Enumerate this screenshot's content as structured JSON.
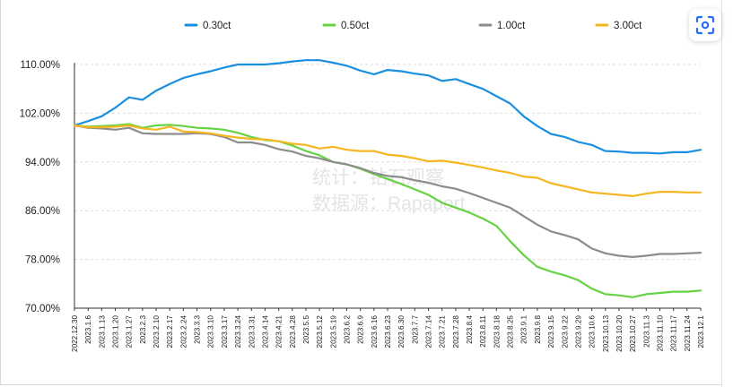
{
  "chart_data": {
    "type": "line",
    "title": "",
    "xlabel": "",
    "ylabel": "",
    "ylim": [
      70,
      110
    ],
    "y_ticks": [
      "70.00%",
      "78.00%",
      "86.00%",
      "94.00%",
      "102.00%",
      "110.00%"
    ],
    "grid": "horizontal dashed",
    "legend_position": "top",
    "watermark": [
      "统计：钻石观察",
      "数据源：Rapaport"
    ],
    "categories": [
      "2022.12.30",
      "2023.1.6",
      "2023.1.13",
      "2023.1.20",
      "2023.1.27",
      "2023.2.3",
      "2023.2.10",
      "2023.2.17",
      "2023.2.24",
      "2023.3.3",
      "2023.3.10",
      "2023.3.17",
      "2023.3.24",
      "2023.3.31",
      "2023.4.14",
      "2023.4.21",
      "2023.4.28",
      "2023.5.5",
      "2023.5.12",
      "2023.5.19",
      "2023.6.2",
      "2023.6.9",
      "2023.6.16",
      "2023.6.23",
      "2023.6.30",
      "2023.7.7",
      "2023.7.14",
      "2023.7.21",
      "2023.7.28",
      "2023.8.4",
      "2023.8.11",
      "2023.8.18",
      "2023.8.25",
      "2023.9.1",
      "2023.9.8",
      "2023.9.15",
      "2023.9.22",
      "2023.9.29",
      "2023.10.6",
      "2023.10.13",
      "2023.10.20",
      "2023.10.27",
      "2023.11.3",
      "2023.11.10",
      "2023.11.17",
      "2023.11.24",
      "2023.12.1"
    ],
    "series": [
      {
        "name": "0.30ct",
        "color": "#1a8fe0",
        "values": [
          100,
          100.7,
          101.5,
          102.9,
          104.6,
          104.2,
          105.7,
          106.8,
          107.8,
          108.4,
          108.9,
          109.5,
          110.0,
          110.0,
          110.0,
          110.2,
          110.5,
          110.7,
          110.7,
          110.3,
          109.8,
          109.0,
          108.4,
          109.1,
          108.9,
          108.5,
          108.2,
          107.3,
          107.6,
          106.8,
          106.0,
          104.8,
          103.6,
          101.5,
          99.9,
          98.6,
          98.1,
          97.3,
          96.8,
          95.8,
          95.7,
          95.5,
          95.5,
          95.4,
          95.6,
          95.6,
          96.0
        ]
      },
      {
        "name": "0.50ct",
        "color": "#66d244",
        "values": [
          100,
          99.8,
          99.9,
          100.0,
          100.2,
          99.6,
          100.0,
          100.1,
          99.9,
          99.6,
          99.5,
          99.3,
          98.8,
          98.1,
          97.6,
          97.4,
          96.7,
          95.8,
          95.1,
          94.0,
          93.6,
          92.9,
          92.0,
          91.2,
          90.4,
          89.5,
          88.6,
          87.3,
          86.5,
          85.7,
          84.7,
          83.5,
          81.0,
          78.7,
          76.8,
          76.0,
          75.4,
          74.6,
          73.2,
          72.3,
          72.1,
          71.8,
          72.3,
          72.5,
          72.7,
          72.7,
          72.9
        ]
      },
      {
        "name": "1.00ct",
        "color": "#8c8c8c",
        "values": [
          100,
          99.6,
          99.5,
          99.3,
          99.6,
          98.7,
          98.6,
          98.6,
          98.6,
          98.7,
          98.6,
          98.1,
          97.2,
          97.2,
          96.8,
          96.1,
          95.7,
          95.0,
          94.6,
          94.0,
          93.6,
          93.0,
          92.2,
          91.7,
          91.5,
          91.0,
          90.6,
          90.0,
          89.6,
          88.9,
          88.1,
          87.3,
          86.5,
          85.1,
          83.7,
          82.6,
          82.0,
          81.3,
          79.8,
          79.0,
          78.6,
          78.4,
          78.6,
          78.9,
          78.9,
          79.0,
          79.1
        ]
      },
      {
        "name": "3.00ct",
        "color": "#f5b61f",
        "values": [
          100,
          99.7,
          99.7,
          99.8,
          100.0,
          99.5,
          99.3,
          99.8,
          99.0,
          98.9,
          98.7,
          98.3,
          98.0,
          97.8,
          97.7,
          97.4,
          97.0,
          96.8,
          96.2,
          96.5,
          96.0,
          95.8,
          95.8,
          95.2,
          95.0,
          94.6,
          94.1,
          94.2,
          93.9,
          93.5,
          93.1,
          92.6,
          92.2,
          91.6,
          91.4,
          90.5,
          90.0,
          89.5,
          89.0,
          88.8,
          88.6,
          88.4,
          88.8,
          89.1,
          89.1,
          89.0,
          89.0
        ]
      }
    ]
  }
}
